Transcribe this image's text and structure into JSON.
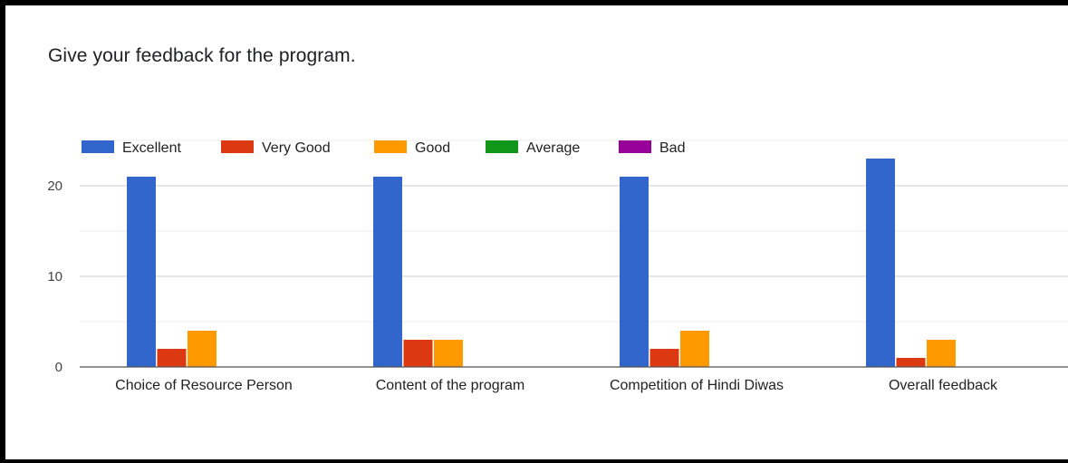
{
  "question": "Give your feedback for the program.",
  "chart_data": {
    "type": "bar",
    "title": "",
    "xlabel": "",
    "ylabel": "",
    "ylim": [
      0,
      25
    ],
    "yticks": [
      0,
      10,
      20
    ],
    "grid": true,
    "legend_position": "top-left",
    "categories": [
      "Choice of Resource Person",
      "Content of the program",
      "Competition of Hindi Diwas",
      "Overall feedback"
    ],
    "series": [
      {
        "name": "Excellent",
        "color": "#3366cc",
        "values": [
          21,
          21,
          21,
          23
        ]
      },
      {
        "name": "Very Good",
        "color": "#dc3912",
        "values": [
          2,
          3,
          2,
          1
        ]
      },
      {
        "name": "Good",
        "color": "#ff9900",
        "values": [
          4,
          3,
          4,
          3
        ]
      },
      {
        "name": "Average",
        "color": "#109618",
        "values": [
          0,
          0,
          0,
          0
        ]
      },
      {
        "name": "Bad",
        "color": "#990099",
        "values": [
          0,
          0,
          0,
          0
        ]
      }
    ]
  }
}
